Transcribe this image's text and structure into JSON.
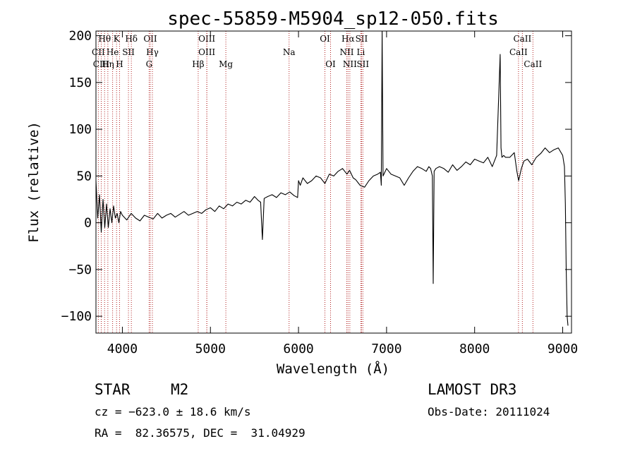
{
  "chart_data": {
    "type": "line",
    "title": "spec-55859-M5904_sp12-050.fits",
    "xlabel": "Wavelength (Å)",
    "ylabel": "Flux (relative)",
    "xlim": [
      3700,
      9100
    ],
    "ylim": [
      -118,
      205
    ],
    "xticks": [
      4000,
      5000,
      6000,
      7000,
      8000,
      9000
    ],
    "yticks": [
      -100,
      -50,
      0,
      50,
      100,
      150,
      200
    ],
    "ytick_labels": [
      "−100",
      "−50",
      "0",
      "50",
      "100",
      "150",
      "200"
    ],
    "series": [
      {
        "name": "spectrum",
        "x": [
          3700,
          3720,
          3740,
          3760,
          3780,
          3800,
          3820,
          3840,
          3860,
          3880,
          3900,
          3920,
          3940,
          3960,
          3980,
          4000,
          4050,
          4100,
          4150,
          4200,
          4250,
          4300,
          4350,
          4400,
          4450,
          4500,
          4550,
          4600,
          4650,
          4700,
          4750,
          4800,
          4850,
          4900,
          4950,
          5000,
          5050,
          5100,
          5150,
          5200,
          5250,
          5300,
          5350,
          5400,
          5450,
          5500,
          5540,
          5570,
          5590,
          5610,
          5650,
          5700,
          5750,
          5800,
          5850,
          5900,
          5950,
          5990,
          6000,
          6020,
          6050,
          6100,
          6150,
          6200,
          6250,
          6300,
          6350,
          6400,
          6450,
          6500,
          6550,
          6580,
          6620,
          6650,
          6700,
          6750,
          6800,
          6850,
          6900,
          6930,
          6940,
          6950,
          6960,
          6980,
          7000,
          7050,
          7100,
          7150,
          7200,
          7250,
          7300,
          7350,
          7400,
          7450,
          7480,
          7500,
          7520,
          7530,
          7540,
          7560,
          7600,
          7650,
          7700,
          7750,
          7800,
          7850,
          7900,
          7950,
          8000,
          8050,
          8100,
          8150,
          8200,
          8250,
          8290,
          8300,
          8310,
          8330,
          8350,
          8400,
          8450,
          8480,
          8500,
          8530,
          8560,
          8600,
          8650,
          8700,
          8750,
          8800,
          8850,
          8900,
          8950,
          9000,
          9020,
          9030,
          9040,
          9050,
          9060
        ],
        "y": [
          45,
          5,
          30,
          -10,
          25,
          -5,
          20,
          -5,
          15,
          0,
          18,
          5,
          10,
          0,
          12,
          8,
          3,
          10,
          5,
          2,
          8,
          6,
          4,
          10,
          5,
          8,
          10,
          6,
          9,
          12,
          8,
          10,
          12,
          10,
          14,
          16,
          12,
          18,
          15,
          20,
          18,
          22,
          20,
          24,
          22,
          28,
          24,
          22,
          -18,
          26,
          28,
          30,
          27,
          32,
          30,
          33,
          29,
          27,
          45,
          40,
          48,
          42,
          45,
          50,
          48,
          42,
          52,
          50,
          55,
          58,
          52,
          56,
          48,
          46,
          40,
          38,
          45,
          50,
          52,
          54,
          40,
          205,
          50,
          54,
          58,
          52,
          50,
          48,
          40,
          48,
          55,
          60,
          58,
          55,
          60,
          58,
          50,
          -65,
          55,
          58,
          60,
          58,
          54,
          62,
          56,
          60,
          65,
          62,
          68,
          66,
          64,
          70,
          60,
          72,
          180,
          80,
          70,
          72,
          70,
          70,
          75,
          55,
          45,
          58,
          66,
          68,
          62,
          70,
          74,
          80,
          75,
          78,
          80,
          72,
          60,
          20,
          -50,
          -100,
          -110
        ]
      }
    ],
    "spectral_lines": [
      {
        "label": "Hθ",
        "wavelength": 3798,
        "row": 0
      },
      {
        "label": "K",
        "wavelength": 3934,
        "row": 0
      },
      {
        "label": "Hδ",
        "wavelength": 4102,
        "row": 0
      },
      {
        "label": "OII",
        "wavelength": 4317,
        "row": 0
      },
      {
        "label": "OIII",
        "wavelength": 4959,
        "row": 0
      },
      {
        "label": "Na",
        "wavelength": 5893,
        "row": 1
      },
      {
        "label": "OI",
        "wavelength": 6300,
        "row": 0
      },
      {
        "label": "Hα",
        "wavelength": 6563,
        "row": 0
      },
      {
        "label": "SII",
        "wavelength": 6716,
        "row": 0
      },
      {
        "label": "CaII",
        "wavelength": 8542,
        "row": 0
      },
      {
        "label": "CII",
        "wavelength": 3727,
        "row": 1
      },
      {
        "label": "He",
        "wavelength": 3889,
        "row": 1
      },
      {
        "label": "SII",
        "wavelength": 4069,
        "row": 1
      },
      {
        "label": "Hγ",
        "wavelength": 4341,
        "row": 1
      },
      {
        "label": "OIII",
        "wavelength": 4959,
        "row": 1
      },
      {
        "label": "NII",
        "wavelength": 6548,
        "row": 1
      },
      {
        "label": "Li",
        "wavelength": 6708,
        "row": 1
      },
      {
        "label": "CaII",
        "wavelength": 8498,
        "row": 1
      },
      {
        "label": "CIII",
        "wavelength": 3760,
        "row": 2
      },
      {
        "label": "Hη",
        "wavelength": 3835,
        "row": 2
      },
      {
        "label": "H",
        "wavelength": 3968,
        "row": 2
      },
      {
        "label": "G",
        "wavelength": 4304,
        "row": 2
      },
      {
        "label": "Hβ",
        "wavelength": 4861,
        "row": 2
      },
      {
        "label": "Mg",
        "wavelength": 5175,
        "row": 2
      },
      {
        "label": "OI",
        "wavelength": 6364,
        "row": 2
      },
      {
        "label": "NII",
        "wavelength": 6583,
        "row": 2
      },
      {
        "label": "SII",
        "wavelength": 6731,
        "row": 2
      },
      {
        "label": "CaII",
        "wavelength": 8662,
        "row": 2
      }
    ],
    "spectral_line_color": "#b22222",
    "line_color": "#000000"
  },
  "info": {
    "class": "STAR",
    "subclass": "M2",
    "survey": "LAMOST DR3",
    "cz": "cz = −623.0 ± 18.6 km/s",
    "obs_date": "Obs-Date: 20111024",
    "coords": "RA =  82.36575, DEC =  31.04929"
  }
}
